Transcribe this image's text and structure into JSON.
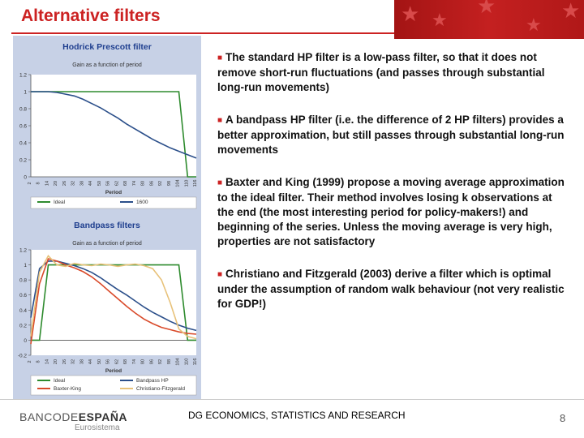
{
  "slide": {
    "title": "Alternative filters",
    "bullets": [
      "The standard HP filter is a low-pass filter, so that it does not remove short-run fluctuations (and passes through substantial long-run movements)",
      "A bandpass HP filter (i.e. the difference of 2 HP filters) provides a better approximation, but still passes through substantial long-run movements",
      "Baxter and King (1999) propose a moving average approximation to the ideal filter. Their method involves losing k observations at the end (the most interesting period for policy-makers!)  and beginning of the series.          Unless the moving average is very high, properties are not satisfactory",
      "Christiano and Fitzgerald (2003) derive a filter which is optimal under the assumption of random walk behaviour (not very realistic for GDP!)"
    ],
    "footer": "DG ECONOMICS, STATISTICS AND RESEARCH",
    "page_number": "8",
    "logo": {
      "main_light": "BANCODE",
      "main_bold": "ESPAÑA",
      "sub": "Eurosistema"
    },
    "colors": {
      "title": "#cc2222",
      "bullet_mark": "#cc2222",
      "banner": "#b01818",
      "chart_bg": "#c7d1e6",
      "ideal": "#2e8b2e",
      "hp": "#2b4f8a",
      "baxter_king": "#d94a2a",
      "christiano_fitzgerald": "#e8c27a"
    }
  },
  "chart_data": [
    {
      "type": "line",
      "title": "Hodrick Prescott filter",
      "subtitle": "Gain as a function of period",
      "xlabel": "Period",
      "ylim": [
        0,
        1.2
      ],
      "yticks": [
        "0",
        "0.2",
        "0.4",
        "0.6",
        "0.8",
        "1",
        "1.2"
      ],
      "x": [
        2,
        8,
        14,
        20,
        26,
        32,
        38,
        44,
        50,
        56,
        62,
        68,
        74,
        80,
        86,
        92,
        98,
        104,
        110,
        116
      ],
      "series": [
        {
          "name": "Ideal",
          "color": "#2e8b2e",
          "values": [
            1,
            1,
            1,
            1,
            1,
            1,
            1,
            1,
            1,
            1,
            1,
            1,
            1,
            1,
            1,
            1,
            1,
            1,
            0,
            0
          ]
        },
        {
          "name": "1600",
          "color": "#2b4f8a",
          "values": [
            1,
            1,
            1,
            0.99,
            0.97,
            0.95,
            0.91,
            0.86,
            0.81,
            0.75,
            0.69,
            0.62,
            0.56,
            0.5,
            0.44,
            0.39,
            0.34,
            0.3,
            0.26,
            0.22
          ]
        }
      ]
    },
    {
      "type": "line",
      "title": "Bandpass filters",
      "subtitle": "Gain as a function of period",
      "xlabel": "Period",
      "ylim": [
        -0.2,
        1.2
      ],
      "yticks": [
        "-0.2",
        "0",
        "0.2",
        "0.4",
        "0.6",
        "0.8",
        "1",
        "1.2"
      ],
      "x": [
        2,
        8,
        14,
        20,
        26,
        32,
        38,
        44,
        50,
        56,
        62,
        68,
        74,
        80,
        86,
        92,
        98,
        104,
        110,
        116
      ],
      "series": [
        {
          "name": "Ideal",
          "color": "#2e8b2e",
          "values": [
            0,
            0,
            1,
            1,
            1,
            1,
            1,
            1,
            1,
            1,
            1,
            1,
            1,
            1,
            1,
            1,
            1,
            1,
            0,
            0
          ]
        },
        {
          "name": "Bandpass HP",
          "color": "#2b4f8a",
          "values": [
            0.3,
            0.95,
            1.05,
            1.05,
            1.02,
            0.99,
            0.95,
            0.9,
            0.83,
            0.75,
            0.67,
            0.6,
            0.52,
            0.44,
            0.37,
            0.31,
            0.25,
            0.2,
            0.16,
            0.13
          ]
        },
        {
          "name": "Baxter-King",
          "color": "#d94a2a",
          "values": [
            -0.05,
            0.75,
            1.08,
            1.05,
            1.0,
            0.96,
            0.91,
            0.84,
            0.75,
            0.65,
            0.55,
            0.45,
            0.36,
            0.28,
            0.22,
            0.17,
            0.14,
            0.11,
            0.09,
            0.08
          ]
        },
        {
          "name": "Christiano-Fitzgerald",
          "color": "#e8c27a",
          "values": [
            0.05,
            0.9,
            1.12,
            1.0,
            0.98,
            1.02,
            1.0,
            0.99,
            1.01,
            1.0,
            0.98,
            1.0,
            1.01,
            0.99,
            0.95,
            0.8,
            0.5,
            0.15,
            0.05,
            0.02
          ]
        }
      ]
    }
  ]
}
